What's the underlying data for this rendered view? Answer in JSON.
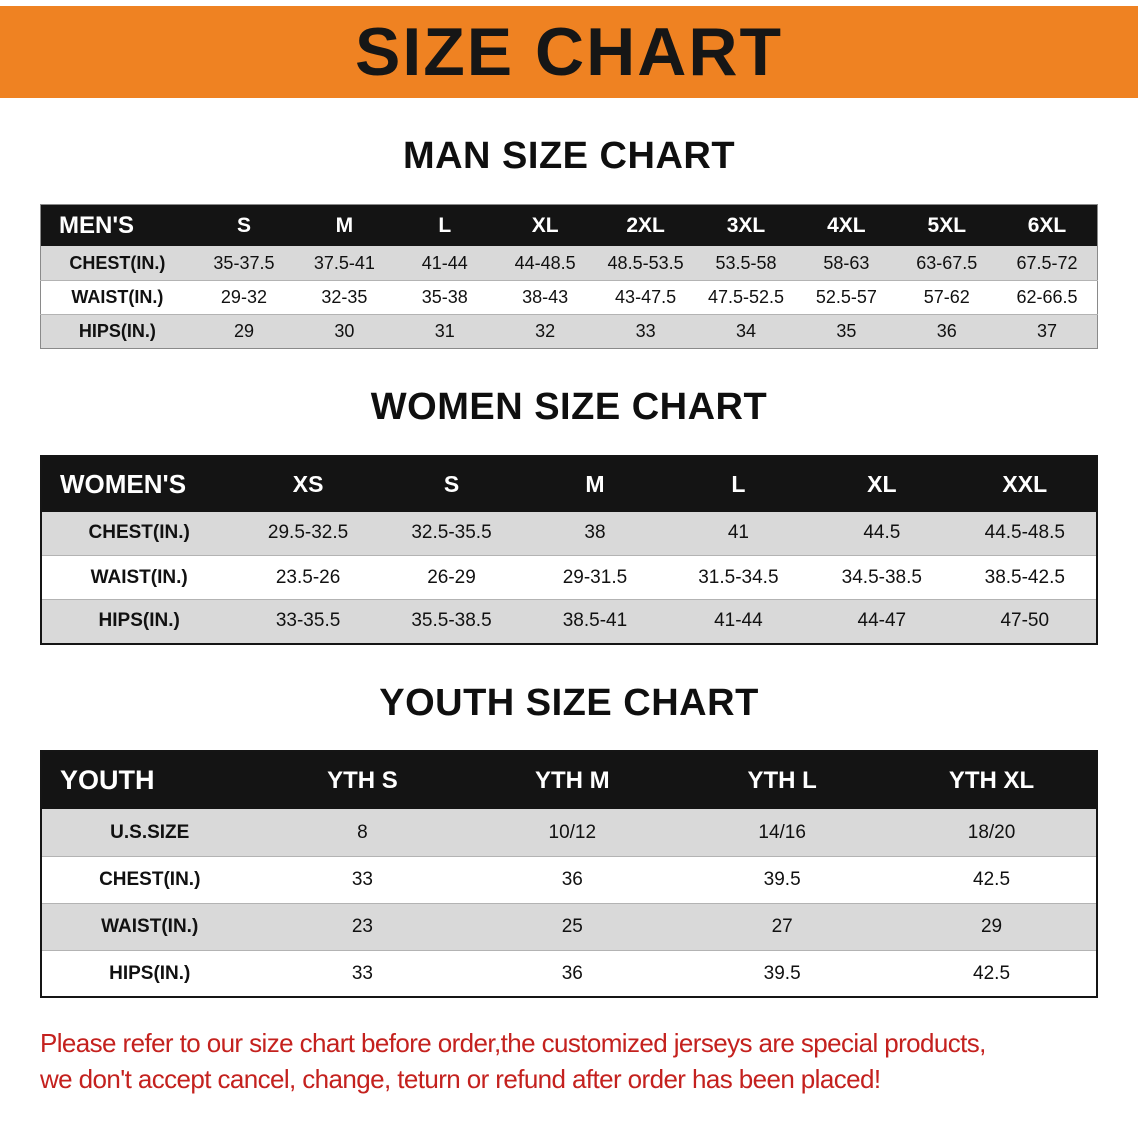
{
  "banner": {
    "title": "SIZE CHART"
  },
  "chart_data": [
    {
      "type": "table",
      "title": "MAN SIZE CHART",
      "columns": [
        "MEN'S",
        "S",
        "M",
        "L",
        "XL",
        "2XL",
        "3XL",
        "4XL",
        "5XL",
        "6XL"
      ],
      "rows": [
        [
          "CHEST(IN.)",
          "35-37.5",
          "37.5-41",
          "41-44",
          "44-48.5",
          "48.5-53.5",
          "53.5-58",
          "58-63",
          "63-67.5",
          "67.5-72"
        ],
        [
          "WAIST(IN.)",
          "29-32",
          "32-35",
          "35-38",
          "38-43",
          "43-47.5",
          "47.5-52.5",
          "52.5-57",
          "57-62",
          "62-66.5"
        ],
        [
          "HIPS(IN.)",
          "29",
          "30",
          "31",
          "32",
          "33",
          "34",
          "35",
          "36",
          "37"
        ]
      ]
    },
    {
      "type": "table",
      "title": "WOMEN SIZE CHART",
      "columns": [
        "WOMEN'S",
        "XS",
        "S",
        "M",
        "L",
        "XL",
        "XXL"
      ],
      "rows": [
        [
          "CHEST(IN.)",
          "29.5-32.5",
          "32.5-35.5",
          "38",
          "41",
          "44.5",
          "44.5-48.5"
        ],
        [
          "WAIST(IN.)",
          "23.5-26",
          "26-29",
          "29-31.5",
          "31.5-34.5",
          "34.5-38.5",
          "38.5-42.5"
        ],
        [
          "HIPS(IN.)",
          "33-35.5",
          "35.5-38.5",
          "38.5-41",
          "41-44",
          "44-47",
          "47-50"
        ]
      ]
    },
    {
      "type": "table",
      "title": "YOUTH SIZE CHART",
      "columns": [
        "YOUTH",
        "YTH S",
        "YTH M",
        "YTH L",
        "YTH XL"
      ],
      "rows": [
        [
          "U.S.SIZE",
          "8",
          "10/12",
          "14/16",
          "18/20"
        ],
        [
          "CHEST(IN.)",
          "33",
          "36",
          "39.5",
          "42.5"
        ],
        [
          "WAIST(IN.)",
          "23",
          "25",
          "27",
          "29"
        ],
        [
          "HIPS(IN.)",
          "33",
          "36",
          "39.5",
          "42.5"
        ]
      ]
    }
  ],
  "disclaimer": {
    "line1": "Please refer to our size chart before order,the customized jerseys are special products,",
    "line2": "we don't accept cancel, change, teturn or refund after order has been placed!"
  },
  "colors": {
    "banner-bg": "#ef8222",
    "table-header-bg": "#141414",
    "row-alt-bg": "#d9d9d9",
    "note-red": "#c4211e"
  }
}
